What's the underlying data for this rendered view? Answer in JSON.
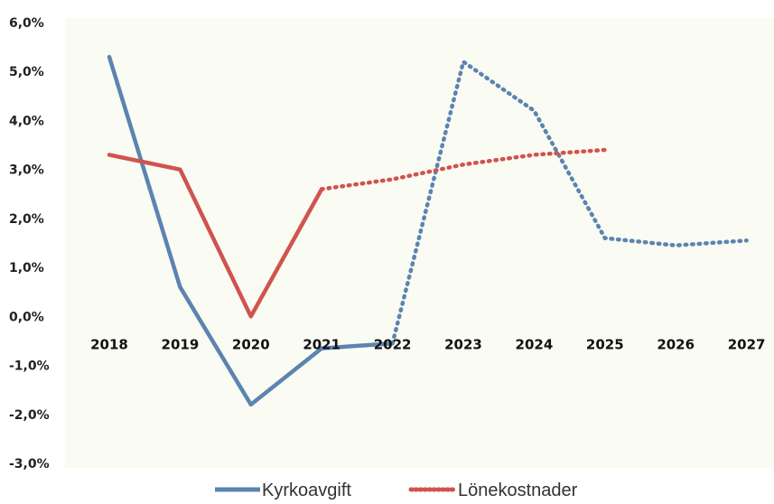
{
  "chart_data": {
    "type": "line",
    "title": "",
    "xlabel": "",
    "ylabel": "",
    "categories": [
      "2018",
      "2019",
      "2020",
      "2021",
      "2022",
      "2023",
      "2024",
      "2025",
      "2026",
      "2027"
    ],
    "y_tick_labels": [
      "6,0%",
      "5,0%",
      "4,0%",
      "3,0%",
      "2,0%",
      "1,0%",
      "0,0%",
      "-1,0%",
      "-2,0%",
      "-3,0%"
    ],
    "ylim": [
      -3.0,
      6.0
    ],
    "grid": false,
    "legend_position": "bottom",
    "background_color": "#fafbf3",
    "series": [
      {
        "name": "Kyrkoavgift",
        "color": "#5b84b1",
        "solid_values": [
          5.3,
          0.6,
          -1.8,
          -0.65,
          -0.55,
          null,
          null,
          null,
          null,
          null
        ],
        "dotted_values": [
          null,
          null,
          null,
          null,
          -0.55,
          5.2,
          4.2,
          1.6,
          1.45,
          1.55
        ]
      },
      {
        "name": "Lönekostnader",
        "color": "#d0544e",
        "solid_values": [
          3.3,
          3.0,
          0.0,
          2.6,
          null,
          null,
          null,
          null,
          null,
          null
        ],
        "dotted_values": [
          null,
          null,
          null,
          2.6,
          2.8,
          3.1,
          3.3,
          3.4,
          null,
          null
        ]
      }
    ]
  }
}
